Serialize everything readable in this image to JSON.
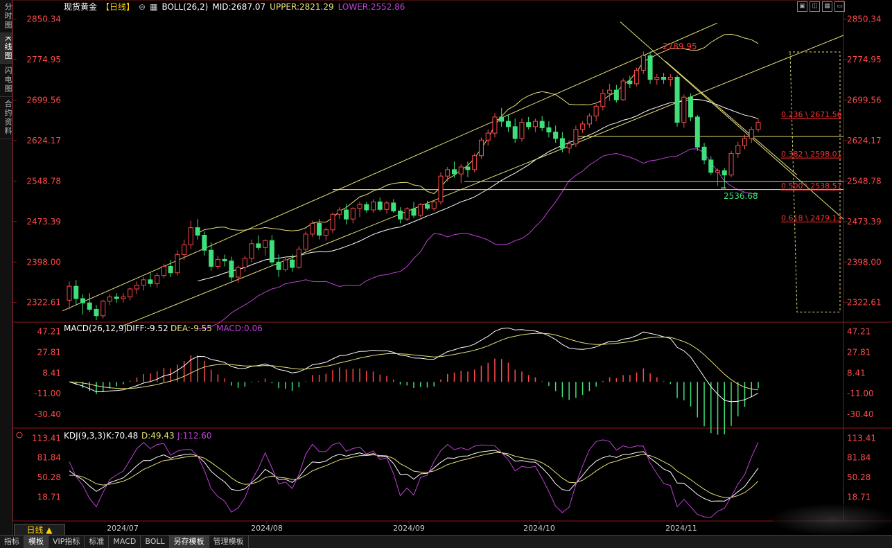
{
  "left_tabs": [
    "分时图",
    "K线图",
    "闪电图",
    "合约资料"
  ],
  "left_active": 1,
  "header": {
    "instrument": "现货黄金",
    "period_bracket": "【日线】",
    "settings_icon": "gear-circle-icon",
    "boll_label": "BOLL(26,2)",
    "mid": "MID:2687.07",
    "upper": "UPPER:2821.29",
    "lower": "LOWER:2552.86"
  },
  "window_controls": [
    "maximize-icon",
    "split-icon",
    "tile-icon",
    "restore-icon"
  ],
  "colors": {
    "up": "#ff4a4a",
    "down": "#3fe07a",
    "boll_mid": "#ffffff",
    "boll_upper": "#e8e07a",
    "boll_lower": "#c040d8",
    "channel": "#e8e07a",
    "fib": "#ff3030",
    "axis_text": "#ff4a4a"
  },
  "main_axis": {
    "labels": [
      "2850.34",
      "2774.95",
      "2699.56",
      "2624.17",
      "2548.78",
      "2473.39",
      "2398.00",
      "2322.61"
    ],
    "ylim": [
      2290,
      2860
    ]
  },
  "annotations": {
    "high_label": "2789.95",
    "low_label": "2536.68",
    "fib_levels": [
      {
        "text": "0.236 \\ 2671.56",
        "value": 2671.56
      },
      {
        "text": "0.382 \\ 2598.01",
        "value": 2598.01
      },
      {
        "text": "0.500 \\ 2538.57",
        "value": 2538.57
      },
      {
        "text": "0.618 \\ 2479.13",
        "value": 2479.13
      }
    ]
  },
  "macd": {
    "label": "MACD(26,12,9)",
    "diff": "DIFF:-9.52",
    "dea": "DEA:-9.55",
    "macd": "MACD:0.06",
    "axis_labels": [
      "47.21",
      "27.81",
      "8.41",
      "-11.00",
      "-30.40"
    ],
    "ylim": [
      -42,
      54
    ]
  },
  "kdj": {
    "label": "KDJ(9,3,3)",
    "k": "K:70.48",
    "d": "D:49.43",
    "j": "J:112.60",
    "axis_labels": [
      "113.41",
      "81.84",
      "50.28",
      "18.71"
    ],
    "ylim": [
      -20,
      125
    ]
  },
  "x_axis": {
    "month_labels": [
      "2024/07",
      "2024/08",
      "2024/09",
      "2024/10",
      "2024/11"
    ]
  },
  "period_button": "日线 ▲",
  "bottom_tabs": [
    "指标",
    "模板",
    "VIP指标",
    "标准",
    "MACD",
    "BOLL",
    "另存模板",
    "管理模板"
  ],
  "bottom_active": [
    1,
    6
  ],
  "chart_data": {
    "type": "candlestick",
    "instrument": "现货黄金",
    "period": "日线",
    "note_months": [
      "2024/07",
      "2024/08",
      "2024/09",
      "2024/10",
      "2024/11"
    ],
    "candles": [
      [
        2327,
        2362,
        2310,
        2353
      ],
      [
        2353,
        2365,
        2318,
        2330
      ],
      [
        2330,
        2338,
        2300,
        2322
      ],
      [
        2322,
        2340,
        2305,
        2310
      ],
      [
        2310,
        2318,
        2290,
        2298
      ],
      [
        2298,
        2328,
        2293,
        2325
      ],
      [
        2325,
        2338,
        2318,
        2333
      ],
      [
        2333,
        2340,
        2322,
        2330
      ],
      [
        2330,
        2340,
        2323,
        2333
      ],
      [
        2333,
        2350,
        2327,
        2348
      ],
      [
        2348,
        2362,
        2338,
        2355
      ],
      [
        2355,
        2370,
        2345,
        2365
      ],
      [
        2365,
        2378,
        2352,
        2358
      ],
      [
        2358,
        2378,
        2350,
        2373
      ],
      [
        2373,
        2395,
        2368,
        2390
      ],
      [
        2390,
        2402,
        2370,
        2378
      ],
      [
        2378,
        2420,
        2373,
        2412
      ],
      [
        2412,
        2440,
        2402,
        2430
      ],
      [
        2430,
        2475,
        2422,
        2462
      ],
      [
        2462,
        2478,
        2440,
        2448
      ],
      [
        2448,
        2455,
        2410,
        2420
      ],
      [
        2420,
        2435,
        2382,
        2390
      ],
      [
        2390,
        2410,
        2385,
        2403
      ],
      [
        2403,
        2412,
        2390,
        2400
      ],
      [
        2400,
        2408,
        2362,
        2370
      ],
      [
        2370,
        2392,
        2360,
        2388
      ],
      [
        2388,
        2410,
        2380,
        2405
      ],
      [
        2405,
        2440,
        2398,
        2432
      ],
      [
        2432,
        2448,
        2420,
        2425
      ],
      [
        2425,
        2440,
        2410,
        2438
      ],
      [
        2438,
        2448,
        2390,
        2398
      ],
      [
        2398,
        2412,
        2370,
        2384
      ],
      [
        2384,
        2408,
        2380,
        2402
      ],
      [
        2402,
        2412,
        2380,
        2388
      ],
      [
        2388,
        2428,
        2385,
        2422
      ],
      [
        2422,
        2455,
        2418,
        2450
      ],
      [
        2450,
        2475,
        2445,
        2470
      ],
      [
        2470,
        2478,
        2440,
        2448
      ],
      [
        2448,
        2462,
        2438,
        2458
      ],
      [
        2458,
        2490,
        2452,
        2487
      ],
      [
        2487,
        2500,
        2478,
        2495
      ],
      [
        2495,
        2506,
        2468,
        2478
      ],
      [
        2478,
        2500,
        2470,
        2498
      ],
      [
        2498,
        2510,
        2482,
        2505
      ],
      [
        2505,
        2510,
        2490,
        2495
      ],
      [
        2495,
        2515,
        2490,
        2510
      ],
      [
        2510,
        2518,
        2492,
        2496
      ],
      [
        2496,
        2512,
        2488,
        2508
      ],
      [
        2508,
        2515,
        2490,
        2493
      ],
      [
        2493,
        2500,
        2470,
        2478
      ],
      [
        2478,
        2500,
        2475,
        2497
      ],
      [
        2497,
        2510,
        2480,
        2485
      ],
      [
        2485,
        2508,
        2482,
        2505
      ],
      [
        2505,
        2512,
        2495,
        2498
      ],
      [
        2498,
        2512,
        2493,
        2510
      ],
      [
        2510,
        2565,
        2505,
        2558
      ],
      [
        2558,
        2575,
        2548,
        2570
      ],
      [
        2570,
        2585,
        2555,
        2562
      ],
      [
        2562,
        2580,
        2545,
        2575
      ],
      [
        2575,
        2585,
        2556,
        2570
      ],
      [
        2570,
        2600,
        2565,
        2596
      ],
      [
        2596,
        2630,
        2590,
        2625
      ],
      [
        2625,
        2645,
        2615,
        2638
      ],
      [
        2638,
        2675,
        2630,
        2668
      ],
      [
        2668,
        2685,
        2650,
        2660
      ],
      [
        2660,
        2672,
        2640,
        2650
      ],
      [
        2650,
        2665,
        2620,
        2628
      ],
      [
        2628,
        2665,
        2622,
        2658
      ],
      [
        2658,
        2668,
        2645,
        2650
      ],
      [
        2650,
        2665,
        2640,
        2660
      ],
      [
        2660,
        2670,
        2642,
        2648
      ],
      [
        2648,
        2660,
        2630,
        2640
      ],
      [
        2640,
        2652,
        2620,
        2628
      ],
      [
        2628,
        2640,
        2602,
        2610
      ],
      [
        2610,
        2625,
        2600,
        2618
      ],
      [
        2618,
        2652,
        2612,
        2645
      ],
      [
        2645,
        2660,
        2638,
        2655
      ],
      [
        2655,
        2675,
        2648,
        2670
      ],
      [
        2670,
        2692,
        2660,
        2688
      ],
      [
        2688,
        2720,
        2680,
        2712
      ],
      [
        2712,
        2730,
        2698,
        2718
      ],
      [
        2718,
        2728,
        2695,
        2700
      ],
      [
        2700,
        2740,
        2698,
        2735
      ],
      [
        2735,
        2745,
        2722,
        2730
      ],
      [
        2730,
        2760,
        2725,
        2755
      ],
      [
        2755,
        2790,
        2748,
        2782
      ],
      [
        2782,
        2790,
        2730,
        2738
      ],
      [
        2738,
        2748,
        2728,
        2742
      ],
      [
        2742,
        2750,
        2730,
        2738
      ],
      [
        2738,
        2748,
        2725,
        2742
      ],
      [
        2742,
        2746,
        2650,
        2658
      ],
      [
        2658,
        2710,
        2648,
        2705
      ],
      [
        2705,
        2712,
        2660,
        2668
      ],
      [
        2668,
        2672,
        2605,
        2612
      ],
      [
        2612,
        2620,
        2580,
        2588
      ],
      [
        2588,
        2595,
        2560,
        2565
      ],
      [
        2565,
        2572,
        2540,
        2568
      ],
      [
        2568,
        2573,
        2536,
        2560
      ],
      [
        2560,
        2605,
        2556,
        2600
      ],
      [
        2600,
        2622,
        2592,
        2615
      ],
      [
        2615,
        2635,
        2608,
        2628
      ],
      [
        2628,
        2650,
        2620,
        2645
      ],
      [
        2645,
        2665,
        2640,
        2658
      ]
    ]
  }
}
